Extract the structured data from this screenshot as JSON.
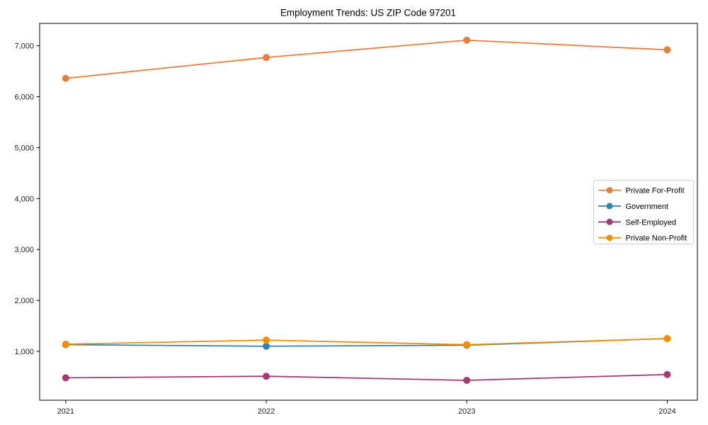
{
  "chart_data": {
    "type": "line",
    "title": "Employment Trends: US ZIP Code 97201",
    "xlabel": "",
    "ylabel": "",
    "x": [
      2021,
      2022,
      2023,
      2024
    ],
    "x_tick_labels": [
      "2021",
      "2022",
      "2023",
      "2024"
    ],
    "series": [
      {
        "name": "Private For-Profit",
        "color": "#E87D3B",
        "values": [
          6360,
          6770,
          7110,
          6920
        ]
      },
      {
        "name": "Government",
        "color": "#2E86AB",
        "values": [
          1130,
          1100,
          1120,
          1250
        ]
      },
      {
        "name": "Self-Employed",
        "color": "#A23B72",
        "values": [
          480,
          510,
          430,
          545
        ]
      },
      {
        "name": "Private Non-Profit",
        "color": "#F18F01",
        "values": [
          1140,
          1220,
          1130,
          1250
        ]
      }
    ],
    "yticks": [
      {
        "value": 1000,
        "label": "1,000"
      },
      {
        "value": 2000,
        "label": "2,000"
      },
      {
        "value": 3000,
        "label": "3,000"
      },
      {
        "value": 4000,
        "label": "4,000"
      },
      {
        "value": 5000,
        "label": "5,000"
      },
      {
        "value": 6000,
        "label": "6,000"
      },
      {
        "value": 7000,
        "label": "7,000"
      }
    ],
    "xlim": [
      2020.87,
      2024.15
    ],
    "ylim": [
      40,
      7440
    ],
    "grid": false,
    "legend_position": "center-right",
    "marker": "circle",
    "background_color": "#ffffff",
    "axis_color": "#000000",
    "tick_label_color": "#262626",
    "legend_border_color": "#cccccc"
  }
}
